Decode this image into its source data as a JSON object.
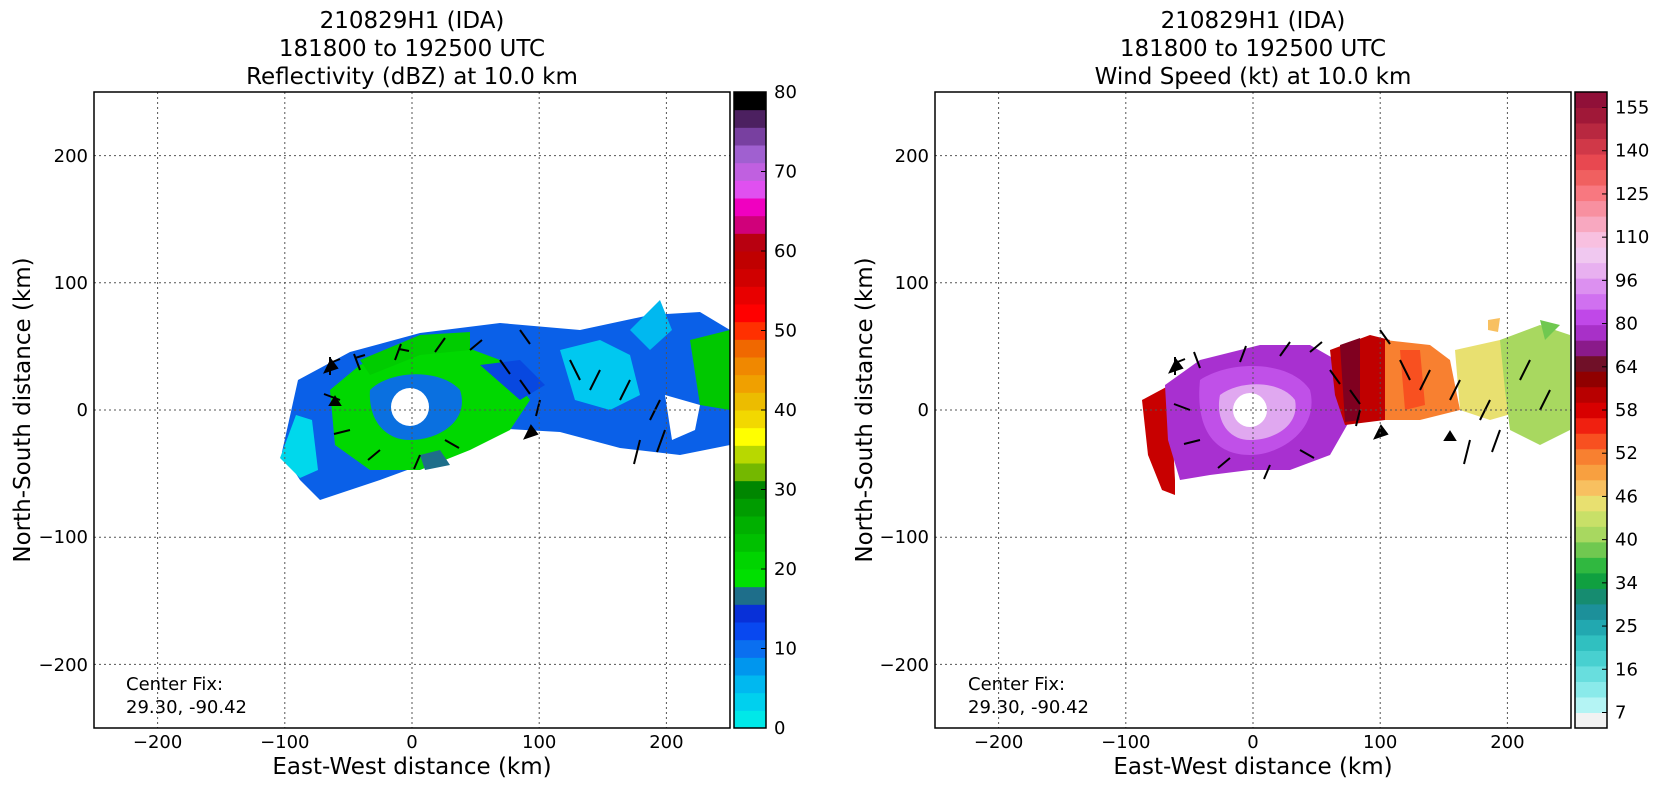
{
  "chart_data": [
    {
      "type": "heatmap",
      "title": [
        "210829H1 (IDA)",
        "181800 to 192500 UTC",
        "Reflectivity (dBZ) at 10.0 km"
      ],
      "xlabel": "East-West distance (km)",
      "ylabel": "North-South distance (km)",
      "xlim": [
        -250,
        250
      ],
      "ylim": [
        -250,
        250
      ],
      "xticks": [
        -200,
        -100,
        0,
        100,
        200
      ],
      "yticks": [
        -200,
        -100,
        0,
        100,
        200
      ],
      "grid": true,
      "annotation": [
        "Center Fix:",
        "29.30, -90.42"
      ],
      "colorbar": {
        "label_ticks": [
          0,
          10,
          20,
          30,
          40,
          50,
          60,
          70,
          80
        ],
        "range": [
          0,
          80
        ],
        "colors": [
          "#00e8e8",
          "#00d0ee",
          "#00b8f0",
          "#0096ee",
          "#0a6ff0",
          "#0848f0",
          "#0830d8",
          "#1e6e8a",
          "#00e000",
          "#00d400",
          "#00c000",
          "#00b000",
          "#009c00",
          "#008600",
          "#74b800",
          "#b8d800",
          "#ffff00",
          "#f2d800",
          "#ecbc00",
          "#f0a000",
          "#f08800",
          "#f06800",
          "#ff3000",
          "#ff0000",
          "#e80000",
          "#d00000",
          "#c00000",
          "#b80010",
          "#d0007a",
          "#f000c0",
          "#e050f0",
          "#c060e0",
          "#a060d0",
          "#7840a0",
          "#4c2060",
          "#000000"
        ]
      }
    },
    {
      "type": "heatmap",
      "title": [
        "210829H1 (IDA)",
        "181800 to 192500 UTC",
        "Wind Speed (kt) at 10.0 km"
      ],
      "xlabel": "East-West distance (km)",
      "ylabel": "North-South distance (km)",
      "xlim": [
        -250,
        250
      ],
      "ylim": [
        -250,
        250
      ],
      "xticks": [
        -200,
        -100,
        0,
        100,
        200
      ],
      "yticks": [
        -200,
        -100,
        0,
        100,
        200
      ],
      "grid": true,
      "annotation": [
        "Center Fix:",
        "29.30, -90.42"
      ],
      "colorbar": {
        "label_ticks": [
          "7",
          "16",
          "25",
          "34",
          "40",
          "46",
          "52",
          "58",
          "64",
          "80",
          "96",
          "110",
          "125",
          "140",
          "155"
        ],
        "colors": [
          "#f2f2f2",
          "#b4f4f4",
          "#8aeaea",
          "#68dede",
          "#48d0d0",
          "#30c0c0",
          "#22a8b0",
          "#1c909a",
          "#168c70",
          "#10a040",
          "#30b840",
          "#70c850",
          "#a8d860",
          "#c8e068",
          "#e8e070",
          "#f8c060",
          "#f8a040",
          "#f88030",
          "#f85020",
          "#f02010",
          "#d80000",
          "#b80000",
          "#900000",
          "#701028",
          "#8a1a8a",
          "#a830c8",
          "#c048e8",
          "#d070f0",
          "#dc90f0",
          "#e8b0f0",
          "#f0c8f0",
          "#f8c0e0",
          "#f8a8c0",
          "#f890a0",
          "#f87880",
          "#f06060",
          "#e84850",
          "#d03848",
          "#b82840",
          "#a01838",
          "#901038"
        ]
      }
    }
  ]
}
